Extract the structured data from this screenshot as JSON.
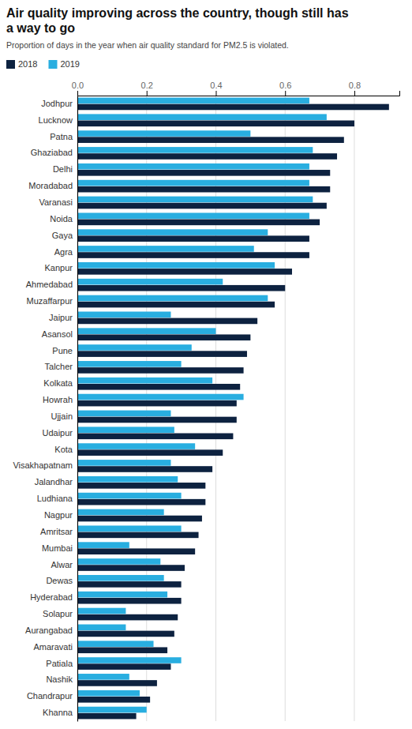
{
  "chart_data": {
    "type": "bar",
    "orientation": "horizontal",
    "title": "Air quality improving across the country, though still has\na way to go",
    "subtitle": "Proportion of days in the year when air quality standard for PM2.5 is violated.",
    "categories": [
      "Jodhpur",
      "Lucknow",
      "Patna",
      "Ghaziabad",
      "Delhi",
      "Moradabad",
      "Varanasi",
      "Noida",
      "Gaya",
      "Agra",
      "Kanpur",
      "Ahmedabad",
      "Muzaffarpur",
      "Jaipur",
      "Asansol",
      "Pune",
      "Talcher",
      "Kolkata",
      "Howrah",
      "Ujjain",
      "Udaipur",
      "Kota",
      "Visakhapatnam",
      "Jalandhar",
      "Ludhiana",
      "Nagpur",
      "Amritsar",
      "Mumbai",
      "Alwar",
      "Dewas",
      "Hyderabad",
      "Solapur",
      "Aurangabad",
      "Amaravati",
      "Patiala",
      "Nashik",
      "Chandrapur",
      "Khanna"
    ],
    "series": [
      {
        "name": "2018",
        "color": "#0d2240",
        "values": [
          0.9,
          0.8,
          0.77,
          0.75,
          0.73,
          0.73,
          0.72,
          0.7,
          0.67,
          0.67,
          0.62,
          0.6,
          0.57,
          0.52,
          0.5,
          0.49,
          0.48,
          0.47,
          0.46,
          0.46,
          0.45,
          0.42,
          0.39,
          0.37,
          0.37,
          0.36,
          0.35,
          0.34,
          0.31,
          0.3,
          0.3,
          0.29,
          0.28,
          0.26,
          0.27,
          0.23,
          0.21,
          0.17
        ]
      },
      {
        "name": "2019",
        "color": "#29aee0",
        "values": [
          0.67,
          0.72,
          0.5,
          0.68,
          0.67,
          0.67,
          0.68,
          0.67,
          0.55,
          0.51,
          0.57,
          0.42,
          0.55,
          0.27,
          0.4,
          0.33,
          0.3,
          0.39,
          0.48,
          0.27,
          0.28,
          0.34,
          0.27,
          0.29,
          0.3,
          0.25,
          0.3,
          0.15,
          0.24,
          0.25,
          0.26,
          0.14,
          0.14,
          0.22,
          0.3,
          0.15,
          0.18,
          0.2
        ]
      }
    ],
    "xlim": [
      0,
      0.93
    ],
    "xticks": [
      {
        "value": 0,
        "label": "0.0"
      },
      0.2,
      0.4,
      0.6,
      0.8
    ],
    "grid": true,
    "legend": "upper left"
  }
}
